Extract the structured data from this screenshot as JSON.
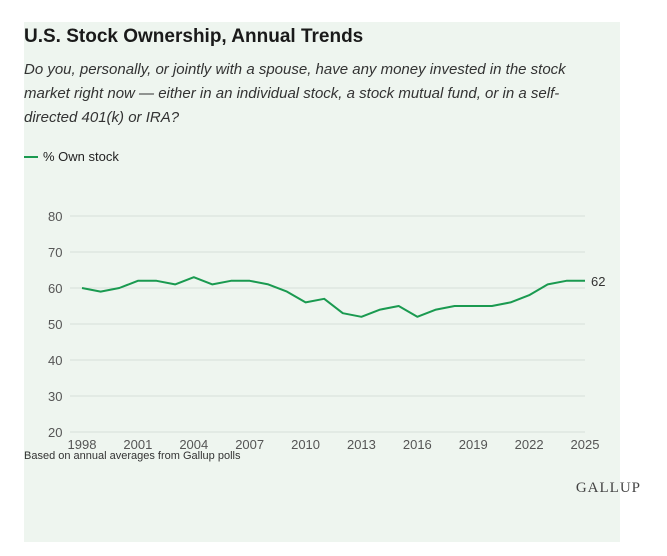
{
  "header": {
    "title": "U.S. Stock Ownership, Annual Trends",
    "subtitle": "Do you, personally, or jointly with a spouse, have any money invested in the stock market right now — either in an individual stock, a stock mutual fund, or in a self-directed 401(k) or IRA?"
  },
  "legend": {
    "label": "% Own stock"
  },
  "footer": {
    "note": "Based on annual averages from Gallup polls",
    "logo": "GALLUP"
  },
  "colors": {
    "line": "#1a9a50",
    "background": "#eef5ef",
    "grid": "#d6dfd8"
  },
  "chart_data": {
    "type": "line",
    "title": "U.S. Stock Ownership, Annual Trends",
    "xlabel": "",
    "ylabel": "",
    "ylim": [
      20,
      80
    ],
    "yticks": [
      20,
      30,
      40,
      50,
      60,
      70,
      80
    ],
    "xticks": [
      1998,
      2001,
      2004,
      2007,
      2010,
      2013,
      2016,
      2019,
      2022,
      2025
    ],
    "grid": true,
    "legend_position": "top-left",
    "end_label": "62",
    "series": [
      {
        "name": "% Own stock",
        "x": [
          1998,
          1999,
          2000,
          2001,
          2002,
          2003,
          2004,
          2005,
          2006,
          2007,
          2008,
          2009,
          2010,
          2011,
          2012,
          2013,
          2014,
          2015,
          2016,
          2017,
          2018,
          2019,
          2020,
          2021,
          2022,
          2023,
          2024,
          2025
        ],
        "values": [
          60,
          59,
          60,
          62,
          62,
          61,
          63,
          61,
          62,
          62,
          61,
          59,
          56,
          57,
          53,
          52,
          54,
          55,
          52,
          54,
          55,
          55,
          55,
          56,
          58,
          61,
          62,
          62
        ]
      }
    ]
  }
}
